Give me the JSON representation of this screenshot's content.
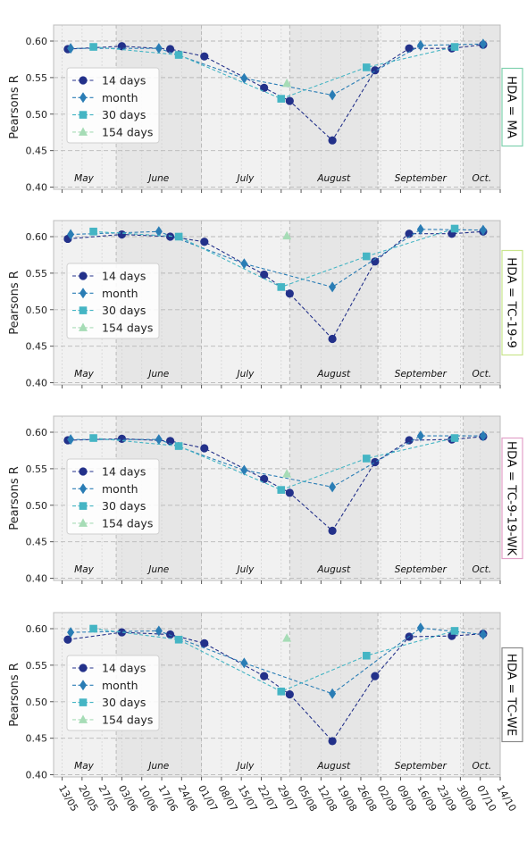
{
  "chart_data": {
    "type": "line",
    "xdate_ticks": [
      "13/05",
      "20/05",
      "27/05",
      "03/06",
      "10/06",
      "17/06",
      "24/06",
      "01/07",
      "08/07",
      "15/07",
      "22/07",
      "29/07",
      "05/08",
      "12/08",
      "19/08",
      "26/08",
      "02/09",
      "09/09",
      "16/09",
      "23/09",
      "30/09",
      "07/10",
      "14/10"
    ],
    "month_bands": [
      {
        "label": "May",
        "start": "2023-05-10",
        "end": "2023-06-01",
        "shade": "light"
      },
      {
        "label": "June",
        "start": "2023-06-01",
        "end": "2023-07-01",
        "shade": "dark"
      },
      {
        "label": "July",
        "start": "2023-07-01",
        "end": "2023-08-01",
        "shade": "light"
      },
      {
        "label": "August",
        "start": "2023-08-01",
        "end": "2023-09-01",
        "shade": "dark"
      },
      {
        "label": "September",
        "start": "2023-09-01",
        "end": "2023-10-01",
        "shade": "light"
      },
      {
        "label": "Oct.",
        "start": "2023-10-01",
        "end": "2023-10-14",
        "shade": "dark"
      }
    ],
    "xlim": [
      "2023-05-10",
      "2023-10-14"
    ],
    "ylim": [
      0.397,
      0.622
    ],
    "yticks": [
      0.4,
      0.45,
      0.5,
      0.55,
      0.6
    ],
    "ylabel": "Pearsons R",
    "legend_position": "center-left",
    "grid": true,
    "series_styles": [
      {
        "name": "14 days",
        "color": "#23318a",
        "marker": "circle"
      },
      {
        "name": "month",
        "color": "#2a7db5",
        "marker": "diamond"
      },
      {
        "name": "30 days",
        "color": "#45b5c4",
        "marker": "square"
      },
      {
        "name": "154 days",
        "color": "#a6dcb6",
        "marker": "triangle"
      }
    ],
    "panels": [
      {
        "label": "HDA = MA",
        "label_color": "#7fd1ae",
        "series": [
          {
            "name": "14 days",
            "x": [
              "2023-05-15",
              "2023-06-03",
              "2023-06-20",
              "2023-07-02",
              "2023-07-23",
              "2023-08-01",
              "2023-08-16",
              "2023-08-31",
              "2023-09-12",
              "2023-09-27",
              "2023-10-08"
            ],
            "values": [
              0.589,
              0.593,
              0.589,
              0.579,
              0.536,
              0.518,
              0.464,
              0.56,
              0.59,
              0.59,
              0.595
            ]
          },
          {
            "name": "month",
            "x": [
              "2023-05-16",
              "2023-06-16",
              "2023-07-16",
              "2023-08-16",
              "2023-09-16",
              "2023-10-08"
            ],
            "values": [
              0.59,
              0.59,
              0.549,
              0.526,
              0.594,
              0.596
            ]
          },
          {
            "name": "30 days",
            "x": [
              "2023-05-24",
              "2023-06-23",
              "2023-07-29",
              "2023-08-28",
              "2023-09-28"
            ],
            "values": [
              0.592,
              0.581,
              0.521,
              0.564,
              0.592
            ]
          },
          {
            "name": "154 days",
            "x": [
              "2023-07-31"
            ],
            "values": [
              0.542
            ]
          }
        ]
      },
      {
        "label": "HDA = TC-19-9",
        "label_color": "#c9e58c",
        "series": [
          {
            "name": "14 days",
            "x": [
              "2023-05-15",
              "2023-06-03",
              "2023-06-20",
              "2023-07-02",
              "2023-07-23",
              "2023-08-01",
              "2023-08-16",
              "2023-08-31",
              "2023-09-12",
              "2023-09-27",
              "2023-10-08"
            ],
            "values": [
              0.597,
              0.603,
              0.6,
              0.593,
              0.548,
              0.522,
              0.46,
              0.566,
              0.604,
              0.604,
              0.607
            ]
          },
          {
            "name": "month",
            "x": [
              "2023-05-16",
              "2023-06-16",
              "2023-07-16",
              "2023-08-16",
              "2023-09-16",
              "2023-10-08"
            ],
            "values": [
              0.603,
              0.607,
              0.563,
              0.531,
              0.61,
              0.609
            ]
          },
          {
            "name": "30 days",
            "x": [
              "2023-05-24",
              "2023-06-23",
              "2023-07-29",
              "2023-08-28",
              "2023-09-28"
            ],
            "values": [
              0.607,
              0.6,
              0.531,
              0.573,
              0.611
            ]
          },
          {
            "name": "154 days",
            "x": [
              "2023-07-31"
            ],
            "values": [
              0.601
            ]
          }
        ]
      },
      {
        "label": "HDA = TC-9-19-WK",
        "label_color": "#e2a1c8",
        "series": [
          {
            "name": "14 days",
            "x": [
              "2023-05-15",
              "2023-06-03",
              "2023-06-20",
              "2023-07-02",
              "2023-07-23",
              "2023-08-01",
              "2023-08-16",
              "2023-08-31",
              "2023-09-12",
              "2023-09-27",
              "2023-10-08"
            ],
            "values": [
              0.589,
              0.591,
              0.588,
              0.578,
              0.536,
              0.517,
              0.465,
              0.559,
              0.589,
              0.59,
              0.594
            ]
          },
          {
            "name": "month",
            "x": [
              "2023-05-16",
              "2023-06-16",
              "2023-07-16",
              "2023-08-16",
              "2023-09-16",
              "2023-10-08"
            ],
            "values": [
              0.59,
              0.59,
              0.548,
              0.525,
              0.595,
              0.595
            ]
          },
          {
            "name": "30 days",
            "x": [
              "2023-05-24",
              "2023-06-23",
              "2023-07-29",
              "2023-08-28",
              "2023-09-28"
            ],
            "values": [
              0.592,
              0.581,
              0.521,
              0.564,
              0.592
            ]
          },
          {
            "name": "154 days",
            "x": [
              "2023-07-31"
            ],
            "values": [
              0.543
            ]
          }
        ]
      },
      {
        "label": "HDA = TC-WE",
        "label_color": "#8a8a8a",
        "series": [
          {
            "name": "14 days",
            "x": [
              "2023-05-15",
              "2023-06-03",
              "2023-06-20",
              "2023-07-02",
              "2023-07-23",
              "2023-08-01",
              "2023-08-16",
              "2023-08-31",
              "2023-09-12",
              "2023-09-27",
              "2023-10-08"
            ],
            "values": [
              0.585,
              0.595,
              0.592,
              0.58,
              0.535,
              0.51,
              0.446,
              0.535,
              0.589,
              0.59,
              0.593
            ]
          },
          {
            "name": "month",
            "x": [
              "2023-05-16",
              "2023-06-16",
              "2023-07-16",
              "2023-08-16",
              "2023-09-16",
              "2023-10-08"
            ],
            "values": [
              0.595,
              0.597,
              0.553,
              0.511,
              0.601,
              0.592
            ]
          },
          {
            "name": "30 days",
            "x": [
              "2023-05-24",
              "2023-06-23",
              "2023-07-29",
              "2023-08-28",
              "2023-09-28"
            ],
            "values": [
              0.6,
              0.585,
              0.514,
              0.563,
              0.597
            ]
          },
          {
            "name": "154 days",
            "x": [
              "2023-07-31"
            ],
            "values": [
              0.587
            ]
          }
        ]
      }
    ]
  }
}
